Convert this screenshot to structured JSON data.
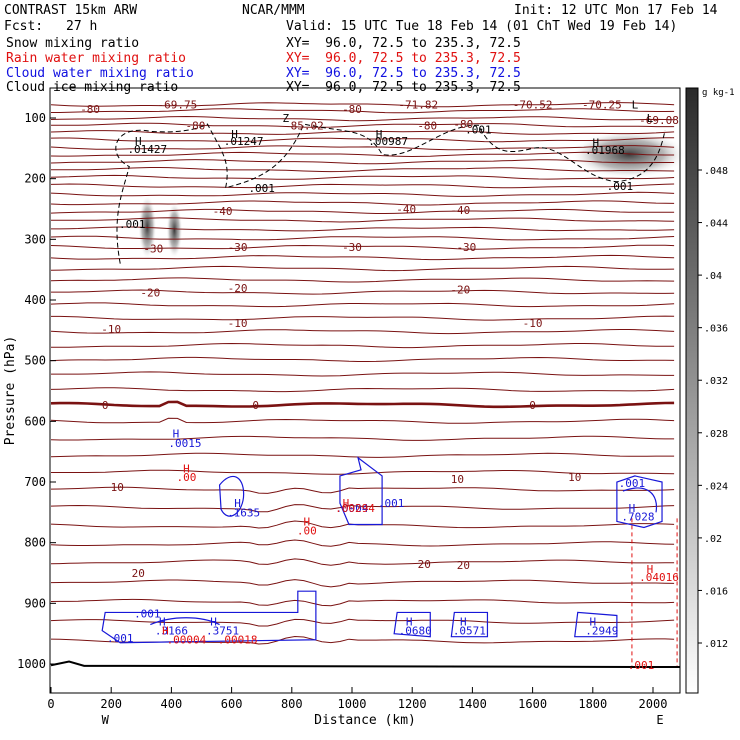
{
  "header": {
    "model_title": "CONTRAST 15km ARW",
    "center": "NCAR/MMM",
    "init": "Init: 12 UTC Mon 17 Feb 14",
    "fcst_label": "Fcst:",
    "fcst_value": "27 h",
    "valid": "Valid: 15 UTC Tue 18 Feb 14 (01 ChT Wed 19 Feb 14)"
  },
  "fields": [
    {
      "label": "Snow mixing ratio",
      "xy": "XY=  96.0, 72.5 to 235.3, 72.5",
      "color": "#000000"
    },
    {
      "label": "Rain water mixing ratio",
      "xy": "XY=  96.0, 72.5 to 235.3, 72.5",
      "color": "#e01010"
    },
    {
      "label": "Cloud water mixing ratio",
      "xy": "XY=  96.0, 72.5 to 235.3, 72.5",
      "color": "#1010e0"
    },
    {
      "label": "Cloud ice mixing ratio",
      "xy": "XY=  96.0, 72.5 to 235.3, 72.5",
      "color": "#000000"
    }
  ],
  "chart_data": {
    "type": "contour",
    "xlabel": "Distance (km)",
    "ylabel": "Pressure (hPa)",
    "x_ticks": [
      0,
      200,
      400,
      600,
      800,
      1000,
      1200,
      1400,
      1600,
      1800,
      2000
    ],
    "y_ticks": [
      100,
      200,
      300,
      400,
      500,
      600,
      700,
      800,
      900,
      1000
    ],
    "xlim": [
      0,
      2100
    ],
    "ylim": [
      1050,
      50
    ],
    "end_labels": {
      "left": "W",
      "right": "E"
    },
    "colorbar": {
      "unit": "g kg-1",
      "ticks": [
        ".012",
        ".016",
        ".02",
        ".024",
        ".028",
        ".032",
        ".036",
        ".04",
        ".044",
        ".048"
      ]
    },
    "temperature_labels": [
      {
        "x": 130,
        "p": 85,
        "text": "-80"
      },
      {
        "x": 420,
        "p": 78,
        "text": "-69.75"
      },
      {
        "x": 480,
        "p": 112,
        "text": "-80"
      },
      {
        "x": 840,
        "p": 112,
        "text": "-85.02"
      },
      {
        "x": 1000,
        "p": 85,
        "text": "-80"
      },
      {
        "x": 1220,
        "p": 78,
        "text": "-71.82"
      },
      {
        "x": 1250,
        "p": 112,
        "text": "-80"
      },
      {
        "x": 1370,
        "p": 110,
        "text": "-80"
      },
      {
        "x": 1600,
        "p": 78,
        "text": "-70.52"
      },
      {
        "x": 1830,
        "p": 78,
        "text": "-70.25"
      },
      {
        "x": 2020,
        "p": 103,
        "text": "-69.08"
      },
      {
        "x": 570,
        "p": 253,
        "text": "-40"
      },
      {
        "x": 1180,
        "p": 250,
        "text": "-40"
      },
      {
        "x": 1360,
        "p": 252,
        "text": "-40"
      },
      {
        "x": 340,
        "p": 315,
        "text": "-30"
      },
      {
        "x": 620,
        "p": 313,
        "text": "-30"
      },
      {
        "x": 1000,
        "p": 313,
        "text": "-30"
      },
      {
        "x": 1380,
        "p": 313,
        "text": "-30"
      },
      {
        "x": 330,
        "p": 388,
        "text": "-20"
      },
      {
        "x": 620,
        "p": 380,
        "text": "-20"
      },
      {
        "x": 1360,
        "p": 383,
        "text": "-20"
      },
      {
        "x": 200,
        "p": 448,
        "text": "-10"
      },
      {
        "x": 620,
        "p": 438,
        "text": "-10"
      },
      {
        "x": 1600,
        "p": 438,
        "text": "-10"
      },
      {
        "x": 180,
        "p": 573,
        "text": "0"
      },
      {
        "x": 680,
        "p": 573,
        "text": "0"
      },
      {
        "x": 1600,
        "p": 573,
        "text": "0"
      },
      {
        "x": 220,
        "p": 708,
        "text": "10"
      },
      {
        "x": 1350,
        "p": 695,
        "text": "10"
      },
      {
        "x": 1740,
        "p": 692,
        "text": "10"
      },
      {
        "x": 290,
        "p": 850,
        "text": "20"
      },
      {
        "x": 1240,
        "p": 835,
        "text": "20"
      },
      {
        "x": 1370,
        "p": 837,
        "text": "20"
      }
    ],
    "ice_labels": [
      {
        "x": 290,
        "p": 138,
        "text": "H"
      },
      {
        "x": 320,
        "p": 151,
        "text": ".01427"
      },
      {
        "x": 610,
        "p": 126,
        "text": "H"
      },
      {
        "x": 640,
        "p": 138,
        "text": ".01247"
      },
      {
        "x": 1090,
        "p": 126,
        "text": "H"
      },
      {
        "x": 1120,
        "p": 138,
        "text": ".00987"
      },
      {
        "x": 1810,
        "p": 140,
        "text": "H"
      },
      {
        "x": 1840,
        "p": 153,
        "text": ".01968"
      },
      {
        "x": 700,
        "p": 215,
        "text": ".001"
      },
      {
        "x": 1420,
        "p": 119,
        "text": ".001"
      },
      {
        "x": 1890,
        "p": 212,
        "text": ".001"
      },
      {
        "x": 270,
        "p": 275,
        "text": ".001"
      },
      {
        "x": 780,
        "p": 100,
        "text": "Z"
      },
      {
        "x": 1940,
        "p": 78,
        "text": "L"
      },
      {
        "x": 1990,
        "p": 100,
        "text": "L"
      }
    ],
    "cloud_water_labels": [
      {
        "x": 415,
        "p": 620,
        "text": "H"
      },
      {
        "x": 445,
        "p": 636,
        "text": ".0015"
      },
      {
        "x": 620,
        "p": 735,
        "text": "H"
      },
      {
        "x": 640,
        "p": 750,
        "text": ".1635"
      },
      {
        "x": 1000,
        "p": 743,
        "text": ".0904"
      },
      {
        "x": 1130,
        "p": 735,
        "text": ".001"
      },
      {
        "x": 1930,
        "p": 702,
        "text": ".001"
      },
      {
        "x": 1930,
        "p": 743,
        "text": "H"
      },
      {
        "x": 1950,
        "p": 757,
        "text": ".7028"
      },
      {
        "x": 370,
        "p": 930,
        "text": "H"
      },
      {
        "x": 400,
        "p": 945,
        "text": ".3166"
      },
      {
        "x": 540,
        "p": 930,
        "text": "H"
      },
      {
        "x": 570,
        "p": 945,
        "text": ".3751"
      },
      {
        "x": 320,
        "p": 917,
        "text": ".001"
      },
      {
        "x": 230,
        "p": 957,
        "text": ".001"
      },
      {
        "x": 1190,
        "p": 930,
        "text": "H"
      },
      {
        "x": 1210,
        "p": 945,
        "text": ".0680"
      },
      {
        "x": 1370,
        "p": 930,
        "text": "H"
      },
      {
        "x": 1390,
        "p": 945,
        "text": ".0571"
      },
      {
        "x": 1800,
        "p": 930,
        "text": "H"
      },
      {
        "x": 1830,
        "p": 945,
        "text": ".2949"
      }
    ],
    "rain_labels": [
      {
        "x": 450,
        "p": 678,
        "text": "H"
      },
      {
        "x": 450,
        "p": 692,
        "text": ".00"
      },
      {
        "x": 850,
        "p": 765,
        "text": "H"
      },
      {
        "x": 850,
        "p": 780,
        "text": ".00"
      },
      {
        "x": 980,
        "p": 735,
        "text": "H"
      },
      {
        "x": 1010,
        "p": 743,
        "text": ".00294"
      },
      {
        "x": 380,
        "p": 945,
        "text": "H"
      },
      {
        "x": 450,
        "p": 960,
        "text": ".00004"
      },
      {
        "x": 620,
        "p": 960,
        "text": ".00018"
      },
      {
        "x": 1990,
        "p": 843,
        "text": "H"
      },
      {
        "x": 2020,
        "p": 857,
        "text": ".04016"
      },
      {
        "x": 1960,
        "p": 1002,
        "text": ".001"
      }
    ]
  }
}
